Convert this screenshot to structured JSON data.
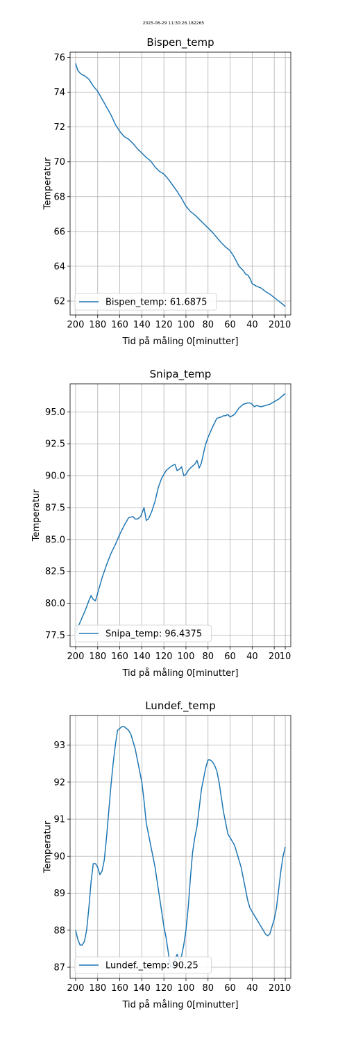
{
  "timestamp": "2025-06-29 11:30:26.182265",
  "style": {
    "line_color": "#1f77b4",
    "grid_color": "#b0b0b0",
    "axes_color": "#000000",
    "legend_border_color": "#cccccc"
  },
  "chart_data": [
    {
      "type": "line",
      "title": "Bispen_temp",
      "xlabel": "Tid på måling 0[minutter]",
      "ylabel": "Temperatur",
      "xlim": [
        205,
        5
      ],
      "xticks": [
        200,
        180,
        160,
        140,
        120,
        100,
        80,
        60,
        40,
        20,
        10
      ],
      "ylim": [
        61.2,
        76.3
      ],
      "yticks": [
        62,
        64,
        66,
        68,
        70,
        72,
        74,
        76
      ],
      "ytick_labels": [
        "62",
        "64",
        "66",
        "68",
        "70",
        "72",
        "74",
        "76"
      ],
      "grid": true,
      "legend_loc": "lower left",
      "series": [
        {
          "name": "Bispen_temp: 61.6875",
          "x": [
            200,
            198,
            196,
            194,
            192,
            190,
            188,
            186,
            184,
            182,
            180,
            176,
            172,
            168,
            164,
            160,
            156,
            152,
            148,
            144,
            140,
            136,
            132,
            128,
            124,
            120,
            116,
            112,
            108,
            104,
            100,
            96,
            92,
            88,
            84,
            80,
            76,
            72,
            68,
            64,
            60,
            56,
            52,
            48,
            46,
            44,
            42,
            40,
            36,
            32,
            28,
            24,
            20,
            16,
            12,
            10
          ],
          "y": [
            75.65,
            75.25,
            75.1,
            75.0,
            74.95,
            74.85,
            74.75,
            74.55,
            74.35,
            74.2,
            74.05,
            73.6,
            73.15,
            72.7,
            72.15,
            71.75,
            71.45,
            71.3,
            71.05,
            70.75,
            70.5,
            70.25,
            70.05,
            69.7,
            69.45,
            69.3,
            69.0,
            68.65,
            68.3,
            67.9,
            67.45,
            67.15,
            66.95,
            66.7,
            66.45,
            66.2,
            65.95,
            65.65,
            65.35,
            65.1,
            64.9,
            64.5,
            64.0,
            63.75,
            63.55,
            63.5,
            63.3,
            63.0,
            62.85,
            62.75,
            62.55,
            62.4,
            62.2,
            62.0,
            61.8,
            61.6875
          ]
        }
      ]
    },
    {
      "type": "line",
      "title": "Snipa_temp",
      "xlabel": "Tid på måling 0[minutter]",
      "ylabel": "Temperatur",
      "xlim": [
        205,
        5
      ],
      "xticks": [
        200,
        180,
        160,
        140,
        120,
        100,
        80,
        60,
        40,
        20,
        10
      ],
      "ylim": [
        76.6,
        97.2
      ],
      "yticks": [
        77.5,
        80.0,
        82.5,
        85.0,
        87.5,
        90.0,
        92.5,
        95.0
      ],
      "ytick_labels": [
        "77.5",
        "80.0",
        "82.5",
        "85.0",
        "87.5",
        "90.0",
        "92.5",
        "95.0"
      ],
      "grid": true,
      "legend_loc": "lower left",
      "series": [
        {
          "name": "Snipa_temp: 96.4375",
          "x": [
            200,
            197,
            194,
            191,
            188,
            186,
            184,
            182,
            180,
            176,
            172,
            168,
            164,
            160,
            156,
            152,
            148,
            146,
            144,
            141,
            138,
            136,
            134,
            131,
            128,
            125,
            122,
            118,
            114,
            110,
            108,
            106,
            104,
            102,
            100,
            98,
            96,
            92,
            90,
            88,
            86,
            84,
            82,
            80,
            76,
            72,
            68,
            66,
            64,
            62,
            60,
            56,
            52,
            48,
            44,
            42,
            40,
            38,
            36,
            32,
            28,
            24,
            20,
            16,
            12,
            10
          ],
          "y": [
            77.7,
            78.3,
            78.9,
            79.5,
            80.2,
            80.6,
            80.3,
            80.2,
            80.8,
            82.0,
            83.0,
            83.9,
            84.6,
            85.4,
            86.1,
            86.7,
            86.8,
            86.6,
            86.6,
            86.8,
            87.5,
            86.5,
            86.6,
            87.2,
            88.0,
            89.1,
            89.8,
            90.4,
            90.7,
            90.9,
            90.4,
            90.5,
            90.7,
            90.0,
            90.1,
            90.4,
            90.6,
            90.9,
            91.2,
            90.6,
            91.0,
            91.8,
            92.5,
            93.0,
            93.8,
            94.5,
            94.6,
            94.7,
            94.7,
            94.8,
            94.6,
            94.8,
            95.3,
            95.6,
            95.7,
            95.7,
            95.6,
            95.4,
            95.5,
            95.4,
            95.5,
            95.6,
            95.8,
            96.0,
            96.3,
            96.4375
          ]
        }
      ]
    },
    {
      "type": "line",
      "title": "Lundef._temp",
      "xlabel": "Tid på måling 0[minutter]",
      "ylabel": "Temperatur",
      "xlim": [
        205,
        5
      ],
      "xticks": [
        200,
        180,
        160,
        140,
        120,
        100,
        80,
        60,
        40,
        20,
        10
      ],
      "ylim": [
        86.7,
        93.8
      ],
      "yticks": [
        87,
        88,
        89,
        90,
        91,
        92,
        93
      ],
      "ytick_labels": [
        "87",
        "88",
        "89",
        "90",
        "91",
        "92",
        "93"
      ],
      "grid": true,
      "legend_loc": "lower left",
      "series": [
        {
          "name": "Lundef._temp: 90.25",
          "x": [
            200,
            198,
            196,
            194,
            192,
            190,
            188,
            186,
            184,
            182,
            180,
            178,
            176,
            174,
            172,
            170,
            168,
            166,
            164,
            162,
            160,
            158,
            156,
            154,
            152,
            150,
            148,
            146,
            144,
            142,
            140,
            138,
            136,
            134,
            132,
            130,
            128,
            126,
            124,
            122,
            120,
            118,
            116,
            114,
            112,
            110,
            108,
            106,
            104,
            102,
            100,
            98,
            96,
            94,
            92,
            90,
            88,
            86,
            84,
            82,
            80,
            78,
            76,
            74,
            72,
            70,
            68,
            66,
            64,
            62,
            60,
            58,
            56,
            54,
            52,
            50,
            48,
            46,
            44,
            42,
            40,
            38,
            36,
            34,
            32,
            30,
            28,
            26,
            24,
            22,
            20,
            18,
            16,
            14,
            12,
            10
          ],
          "y": [
            88.0,
            87.75,
            87.6,
            87.6,
            87.7,
            88.0,
            88.6,
            89.3,
            89.8,
            89.8,
            89.7,
            89.5,
            89.6,
            89.9,
            90.5,
            91.2,
            91.9,
            92.5,
            93.0,
            93.4,
            93.45,
            93.5,
            93.5,
            93.45,
            93.4,
            93.3,
            93.1,
            92.9,
            92.6,
            92.3,
            92.0,
            91.5,
            90.9,
            90.6,
            90.3,
            90.0,
            89.7,
            89.3,
            88.9,
            88.5,
            88.1,
            87.8,
            87.4,
            87.0,
            87.0,
            87.2,
            87.35,
            87.2,
            87.3,
            87.6,
            88.0,
            88.6,
            89.4,
            90.1,
            90.5,
            90.8,
            91.3,
            91.8,
            92.1,
            92.4,
            92.6,
            92.6,
            92.55,
            92.45,
            92.3,
            92.0,
            91.6,
            91.2,
            90.9,
            90.6,
            90.5,
            90.4,
            90.3,
            90.1,
            89.9,
            89.7,
            89.4,
            89.1,
            88.8,
            88.6,
            88.5,
            88.4,
            88.3,
            88.2,
            88.1,
            88.0,
            87.9,
            87.85,
            87.9,
            88.1,
            88.3,
            88.6,
            89.1,
            89.6,
            90.0,
            90.25
          ]
        }
      ]
    }
  ]
}
